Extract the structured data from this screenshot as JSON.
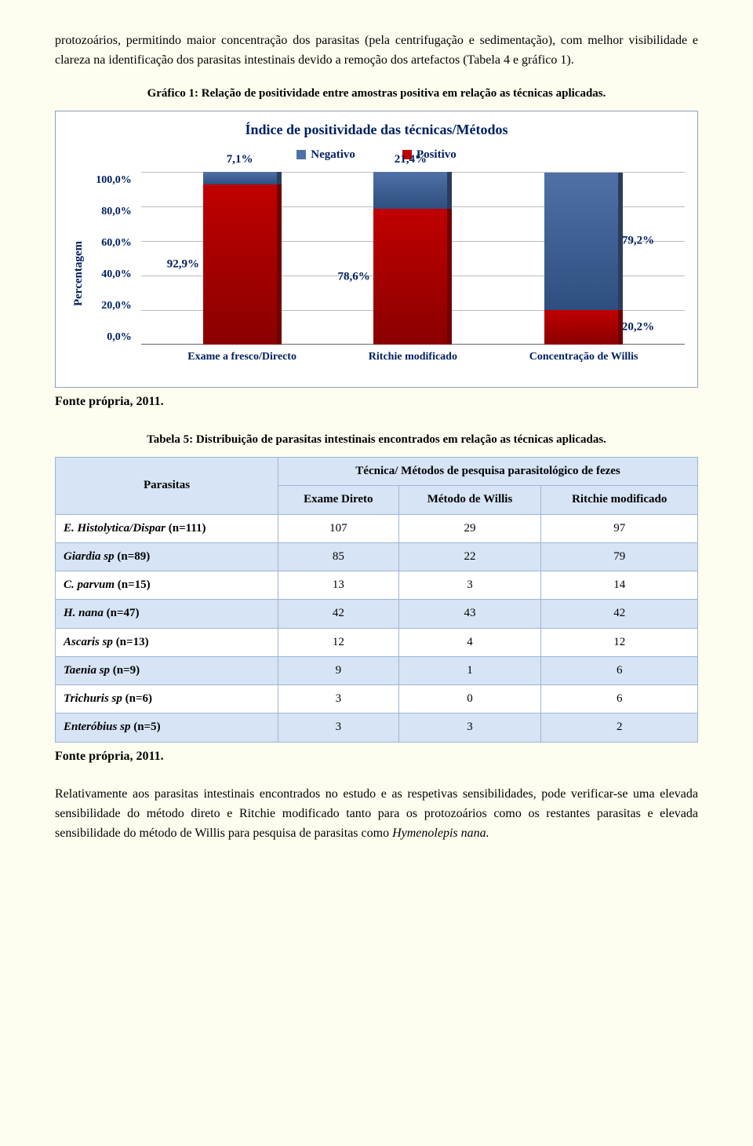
{
  "intro_paragraph": "protozoários, permitindo maior concentração dos parasitas (pela centrifugação e sedimentação), com melhor visibilidade e clareza na identificação dos parasitas intestinais devido a remoção dos artefactos (Tabela 4 e gráfico 1).",
  "chart_caption": "Gráfico 1: Relação de positividade entre amostras positiva em relação as técnicas aplicadas.",
  "chart": {
    "title": "Índice de positividade das técnicas/Métodos",
    "y_axis_label": "Percentagem",
    "legend": [
      {
        "label": "Negativo",
        "color": "#4f71a6"
      },
      {
        "label": "Positivo",
        "color": "#c00000"
      }
    ],
    "y_ticks": [
      "100,0%",
      "80,0%",
      "60,0%",
      "40,0%",
      "20,0%",
      "0,0%"
    ],
    "grid_color": "#bbbbbb",
    "background": "#ffffff",
    "categories": [
      {
        "label": "Exame a fresco/Directo",
        "negativo_pct": 7.1,
        "negativo_label": "7,1%",
        "positivo_pct": 92.9,
        "positivo_label": "92,9%"
      },
      {
        "label": "Ritchie modificado",
        "negativo_pct": 21.4,
        "negativo_label": "21,4%",
        "positivo_pct": 78.6,
        "positivo_label": "78,6%"
      },
      {
        "label": "Concentração de Willis",
        "negativo_pct": 79.2,
        "negativo_label": "79,2%",
        "positivo_pct": 20.2,
        "positivo_label": "20,2%"
      }
    ]
  },
  "source_line": "Fonte própria, 2011.",
  "table_caption": "Tabela 5: Distribuição de parasitas intestinais encontrados em relação as técnicas aplicadas.",
  "table": {
    "col_group_header": "Técnica/ Métodos de pesquisa parasitológico de fezes",
    "row_header_label": "Parasitas",
    "columns": [
      "Exame Direto",
      "Método de Willis",
      "Ritchie modificado"
    ],
    "rows": [
      {
        "label_html": "E. Histolytica/Dispar",
        "n": "(n=111)",
        "cells": [
          "107",
          "29",
          "97"
        ],
        "shade": false
      },
      {
        "label_html": "Giardia sp",
        "n": "(n=89)",
        "cells": [
          "85",
          "22",
          "79"
        ],
        "shade": true
      },
      {
        "label_html": "C. parvum",
        "n": "(n=15)",
        "cells": [
          "13",
          "3",
          "14"
        ],
        "shade": false
      },
      {
        "label_html": "H. nana",
        "n": "(n=47)",
        "cells": [
          "42",
          "43",
          "42"
        ],
        "shade": true
      },
      {
        "label_html": "Ascaris sp",
        "n": "(n=13)",
        "cells": [
          "12",
          "4",
          "12"
        ],
        "shade": false
      },
      {
        "label_html": "Taenia sp",
        "n": "(n=9)",
        "cells": [
          "9",
          "1",
          "6"
        ],
        "shade": true
      },
      {
        "label_html": "Trichuris sp",
        "n": "(n=6)",
        "cells": [
          "3",
          "0",
          "6"
        ],
        "shade": false
      },
      {
        "label_html": "Enteróbius sp",
        "n": "(n=5)",
        "cells": [
          "3",
          "3",
          "2"
        ],
        "shade": true
      }
    ]
  },
  "closing_paragraph_parts": {
    "p1": "Relativamente aos parasitas intestinais encontrados no estudo e as respetivas sensibilidades, pode verificar-se uma elevada sensibilidade do método direto e Ritchie modificado tanto para os protozoários como os restantes parasitas e elevada sensibilidade do método de Willis para pesquisa de parasitas como ",
    "italic": "Hymenolepis nana.",
    "p2": ""
  }
}
